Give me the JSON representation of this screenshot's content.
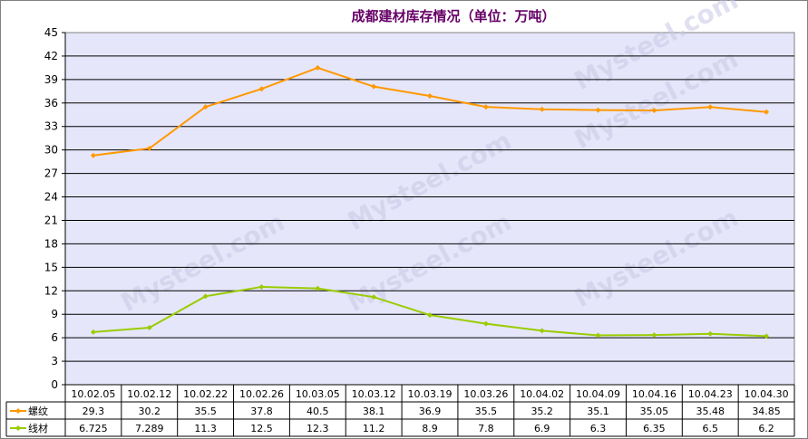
{
  "chart_data": {
    "type": "line",
    "title": "成都建材库存情况（单位：万吨）",
    "xlabel": "",
    "ylabel": "",
    "ylim": [
      0,
      45
    ],
    "yticks": [
      0,
      3,
      6,
      9,
      12,
      15,
      18,
      21,
      24,
      27,
      30,
      33,
      36,
      39,
      42,
      45
    ],
    "grid": true,
    "legend": "bottom-left data table",
    "categories": [
      "10.02.05",
      "10.02.12",
      "10.02.22",
      "10.02.26",
      "10.03.05",
      "10.03.12",
      "10.03.19",
      "10.03.26",
      "10.04.02",
      "10.04.09",
      "10.04.16",
      "10.04.23",
      "10.04.30"
    ],
    "series": [
      {
        "name": "螺纹",
        "color": "#ff9900",
        "values": [
          29.3,
          30.2,
          35.5,
          37.8,
          40.5,
          38.1,
          36.9,
          35.5,
          35.2,
          35.1,
          35.05,
          35.48,
          34.85
        ],
        "labels": [
          "29.3",
          "30.2",
          "35.5",
          "37.8",
          "40.5",
          "38.1",
          "36.9",
          "35.5",
          "35.2",
          "35.1",
          "35.05",
          "35.48",
          "34.85"
        ]
      },
      {
        "name": "线材",
        "color": "#99cc00",
        "values": [
          6.725,
          7.289,
          11.3,
          12.5,
          12.3,
          11.2,
          8.9,
          7.8,
          6.9,
          6.3,
          6.35,
          6.5,
          6.2
        ],
        "labels": [
          "6.725",
          "7.289",
          "11.3",
          "12.5",
          "12.3",
          "11.2",
          "8.9",
          "7.8",
          "6.9",
          "6.3",
          "6.35",
          "6.5",
          "6.2"
        ]
      }
    ],
    "watermark": "Mysteel.com",
    "plot_bg": "#e6e6fa"
  }
}
